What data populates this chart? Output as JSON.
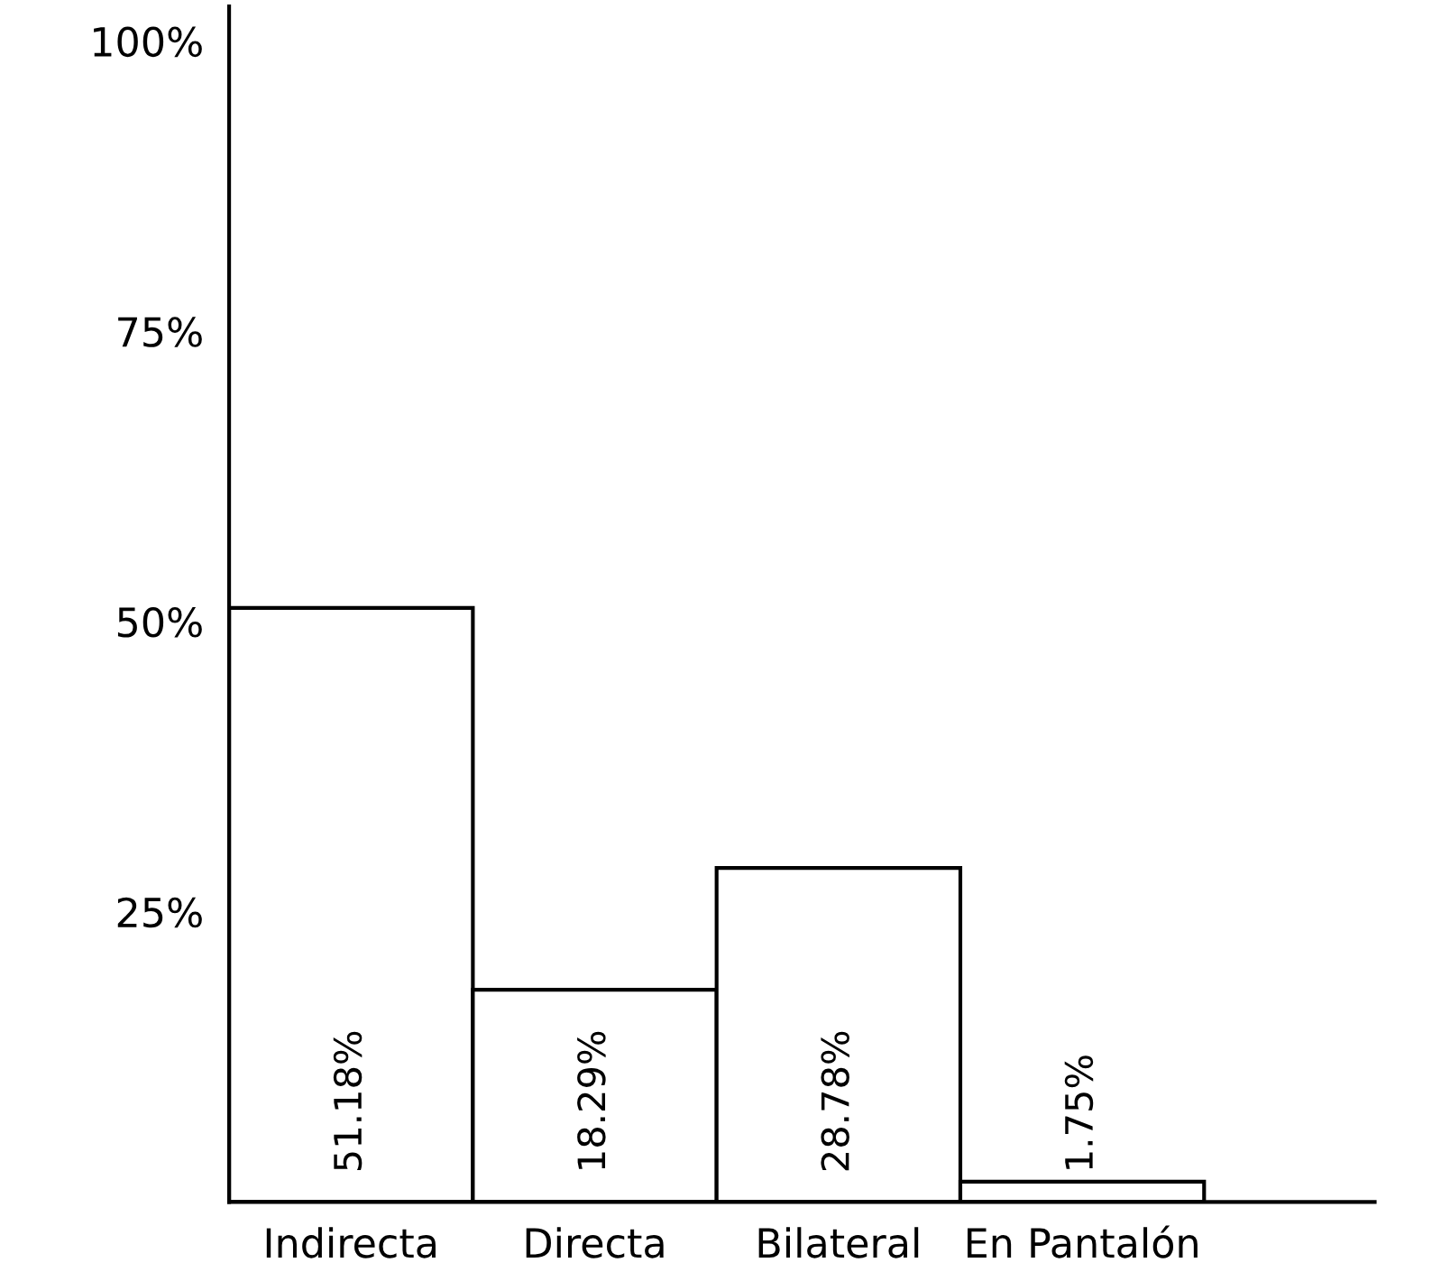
{
  "chart_data": {
    "type": "bar",
    "categories": [
      "Indirecta",
      "Directa",
      "Bilateral",
      "En Pantalón"
    ],
    "values": [
      51.18,
      18.29,
      28.78,
      1.75
    ],
    "value_labels": [
      "51.18%",
      "18.29%",
      "28.78%",
      "1.75%"
    ],
    "color": "#ffffff",
    "ylim": [
      0,
      103
    ],
    "yticks": [
      {
        "value": 25,
        "label": "25%"
      },
      {
        "value": 50,
        "label": "50%"
      },
      {
        "value": 75,
        "label": "75%"
      },
      {
        "value": 100,
        "label": "100%"
      }
    ],
    "grid": false,
    "legend": false
  }
}
